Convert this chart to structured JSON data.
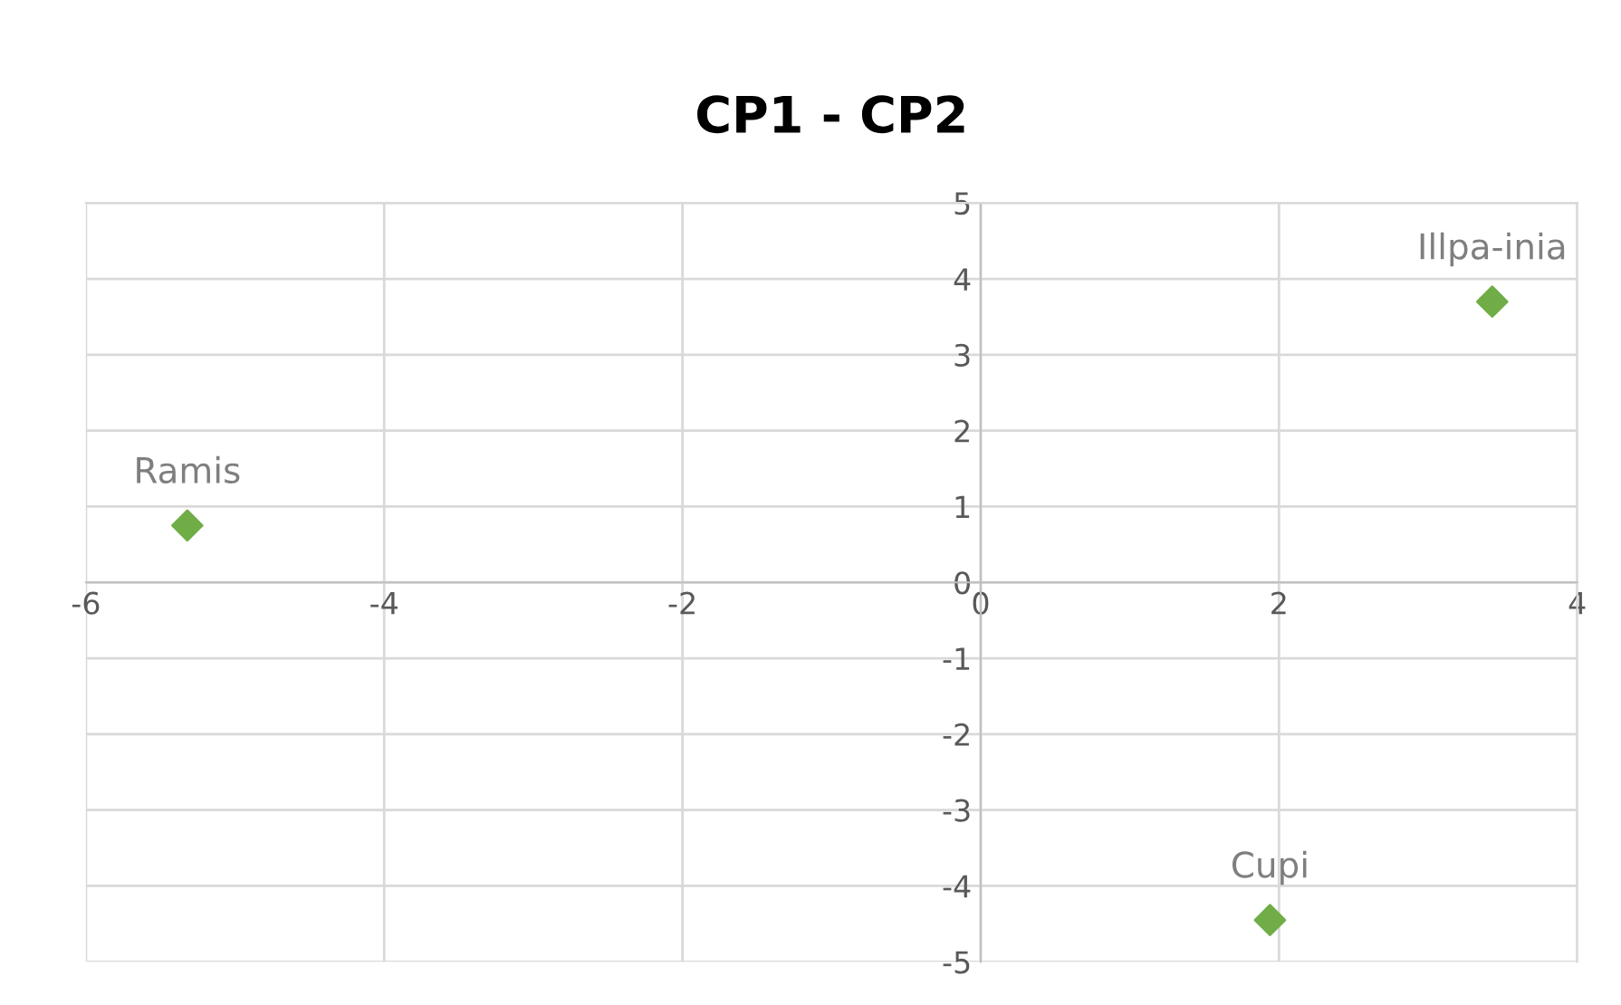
{
  "chart_data": {
    "type": "scatter",
    "title": "CP1 - CP2",
    "series": [
      {
        "color": "#70ad47",
        "x": [
          -5.32,
          3.43,
          1.94
        ],
        "values": [
          0.75,
          3.7,
          -4.45
        ]
      }
    ],
    "annotations": [
      {
        "text": "Ramis",
        "x": -5.32,
        "y": 0.75
      },
      {
        "text": "Illpa-inia",
        "x": 3.43,
        "y": 3.7
      },
      {
        "text": "Cupi",
        "x": 1.94,
        "y": -4.45
      }
    ],
    "xlim": [
      -6,
      4
    ],
    "xticks": [
      -6,
      -4,
      -2,
      0,
      2,
      4
    ],
    "ylim": [
      -5,
      5
    ],
    "yticks": [
      -5,
      -4,
      -3,
      -2,
      -1,
      0,
      1,
      2,
      3,
      4,
      5
    ],
    "grid": true,
    "marker": "diamond"
  }
}
